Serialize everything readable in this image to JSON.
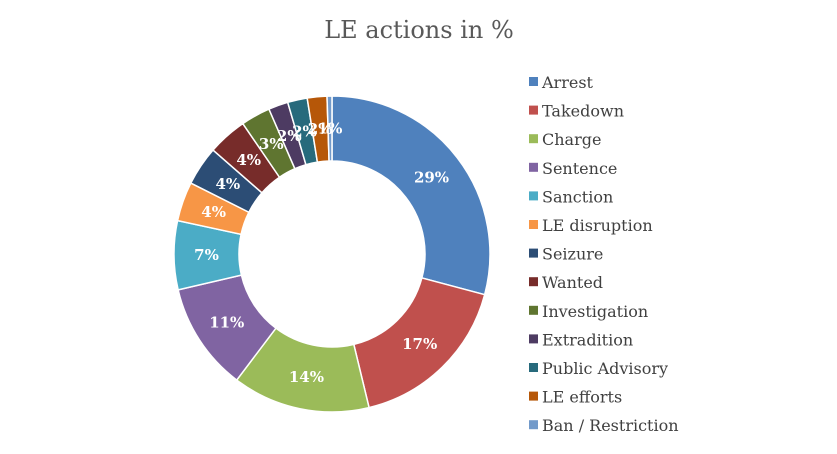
{
  "chart_data": {
    "type": "pie",
    "variant": "donut",
    "title": "LE actions in %",
    "categories": [
      "Arrest",
      "Takedown",
      "Charge",
      "Sentence",
      "Sanction",
      "LE disruption",
      "Seizure",
      "Wanted",
      "Investigation",
      "Extradition",
      "Public Advisory",
      "LE efforts",
      "Ban / Restriction"
    ],
    "values": [
      29,
      17,
      14,
      11,
      7,
      4,
      4,
      4,
      3,
      2,
      2,
      2,
      0.5
    ],
    "data_labels": [
      "29%",
      "17%",
      "14%",
      "11%",
      "7%",
      "4%",
      "4%",
      "4%",
      "3%",
      "2%",
      "2%",
      "2%",
      "1%"
    ],
    "colors": [
      "#4F81BD",
      "#C0504D",
      "#9BBB59",
      "#8064A2",
      "#4BACC6",
      "#F79646",
      "#2C4D75",
      "#772C2A",
      "#5F7530",
      "#4D3B62",
      "#276A7C",
      "#B65708",
      "#729ACA"
    ],
    "legend_position": "right"
  }
}
